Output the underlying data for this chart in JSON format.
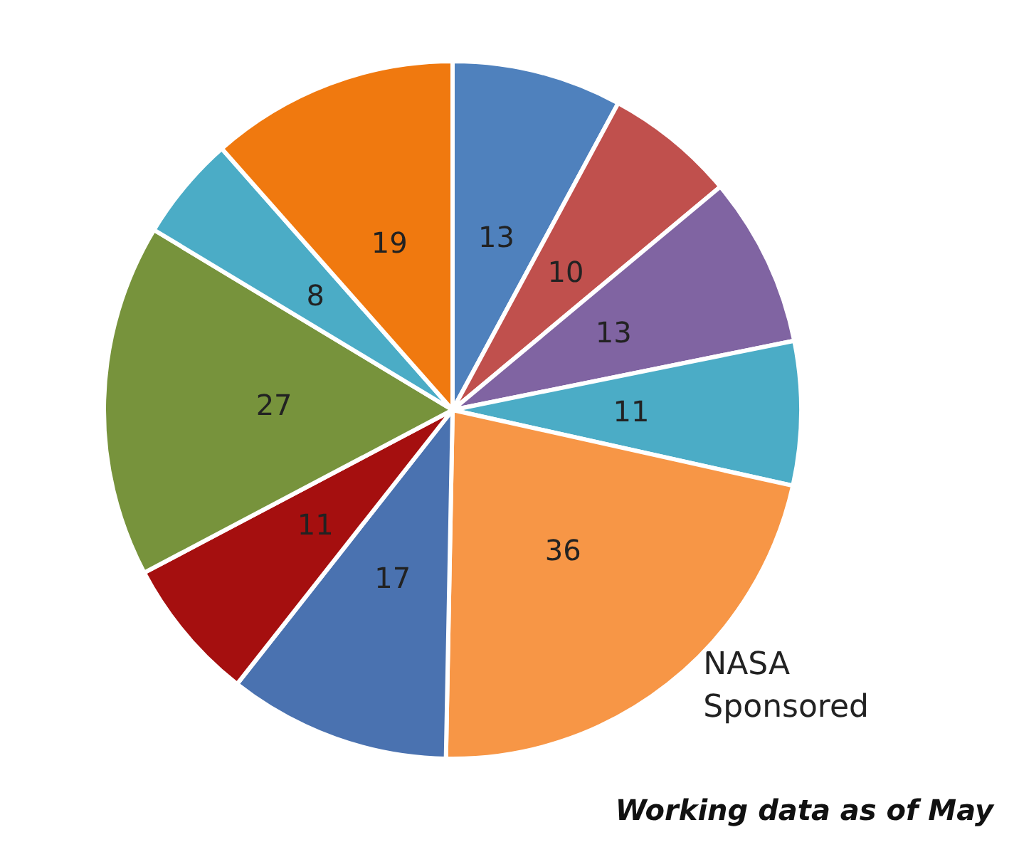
{
  "chart_data": {
    "type": "pie",
    "categories": [
      null,
      null,
      null,
      null,
      "NASA Sponsored",
      null,
      null,
      null,
      null,
      null
    ],
    "values": [
      13,
      10,
      13,
      11,
      36,
      17,
      11,
      27,
      8,
      19
    ],
    "colors": [
      "#4f81bd",
      "#c0504d",
      "#8064a2",
      "#4bacc6",
      "#f79646",
      "#4a72b0",
      "#a50f0f",
      "#77933c",
      "#4bacc6",
      "#f0790f"
    ],
    "data_labels": true,
    "legend": false,
    "annotations": [
      "Working data as of May"
    ]
  }
}
